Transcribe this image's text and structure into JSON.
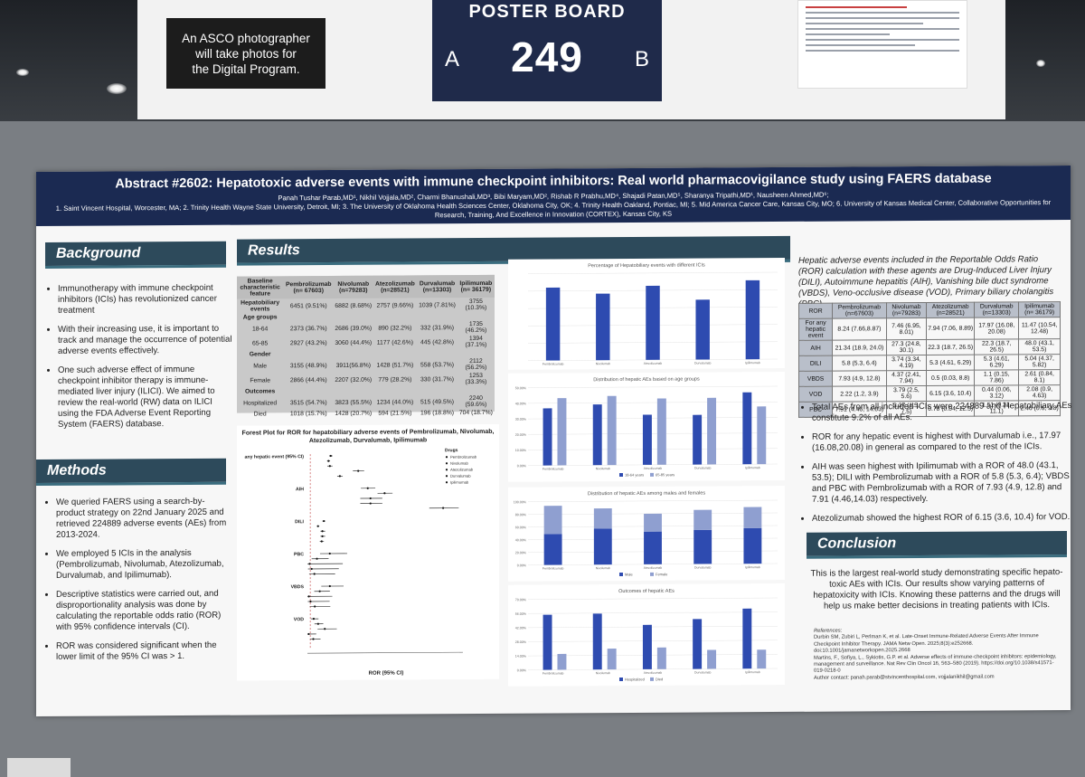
{
  "top_sign": {
    "asco_note": "An ASCO photographer\nwill take photos for\nthe Digital Program.",
    "poster_board_label": "POSTER BOARD",
    "side_a": "A",
    "board_number": "249",
    "side_b": "B"
  },
  "poster": {
    "title": "Abstract #2602: Hepatotoxic adverse events with immune checkpoint inhibitors: Real world pharmacovigilance study using FAERS database",
    "authors": "Panah Tushar Parab,MD¹, Nikhil Vojjala,MD², Charmi Bhanushali,MD³, Bibi Maryam,MD², Rishab R Prabhu,MD⁴, Shajadi Patan,MD⁵, Sharanya Tripathi,MD¹, Nausheen Ahmed,MD⁶;",
    "affiliations": "1. Saint Vincent Hospital, Worcester, MA; 2. Trinity Health Wayne State University, Detroit, MI; 3. The University of Oklahoma Health Sciences Center, Oklahoma City, OK; 4. Trinity Health Oakland, Pontiac, MI; 5. Mid America Cancer Care, Kansas City, MO; 6. University of Kansas Medical Center, Collaborative Opportunities for Research, Training, And Excellence in Innovation (CORTEX), Kansas City, KS",
    "background": {
      "heading": "Background",
      "bullets": [
        "Immunotherapy with immune checkpoint inhibitors (ICIs) has revolutionized cancer treatment",
        "With their increasing use, it is important to track and manage the occurrence of potential adverse events effectively.",
        "One such adverse effect of immune checkpoint inhibitor therapy is immune-mediated liver injury (ILICI). We aimed to review the real-world (RW) data on ILICI using the FDA Adverse Event Reporting System (FAERS) database."
      ]
    },
    "methods": {
      "heading": "Methods",
      "bullets": [
        "We queried FAERS using a search-by-product strategy on 22nd January 2025 and retrieved 224889 adverse events (AEs) from 2013-2024.",
        "We employed 5 ICIs in the analysis (Pembrolizumab, Nivolumab, Atezolizumab, Durvalumab, and Ipilimumab).",
        "Descriptive statistics were carried out, and disproportionality analysis was done by calculating the reportable odds ratio (ROR) with 95% confidence intervals (CI).",
        "ROR was considered significant when the lower limit of the 95% CI was > 1."
      ]
    },
    "results": {
      "heading": "Results",
      "baseline_table": {
        "headers": [
          "Baseline characteristic feature",
          "Pembrolizumab (n= 67603)",
          "Nivolumab (n=79283)",
          "Atezolizumab (n=28521)",
          "Durvalumab (n=13303)",
          "Ipilimumab (n= 36179)"
        ],
        "rows": [
          {
            "label": "Hepatobiliary events",
            "cells": [
              "6451 (9.51%)",
              "6882 (8.68%)",
              "2757 (9.66%)",
              "1039 (7.81%)",
              "3755 (10.3%)"
            ],
            "bold": true
          },
          {
            "label": "Age groups",
            "cells": [
              "",
              "",
              "",
              "",
              ""
            ],
            "bold": true
          },
          {
            "label": "18-64",
            "cells": [
              "2373 (36.7%)",
              "2686 (39.0%)",
              "890 (32.2%)",
              "332 (31.9%)",
              "1735 (46.2%)"
            ]
          },
          {
            "label": "65-85",
            "cells": [
              "2927 (43.2%)",
              "3060 (44.4%)",
              "1177 (42.6%)",
              "445 (42.8%)",
              "1394 (37.1%)"
            ]
          },
          {
            "label": "Gender",
            "cells": [
              "",
              "",
              "",
              "",
              ""
            ],
            "bold": true
          },
          {
            "label": "Male",
            "cells": [
              "3155 (48.9%)",
              "3911(56.8%)",
              "1428 (51.7%)",
              "558 (53.7%)",
              "2112 (56.2%)"
            ]
          },
          {
            "label": "Female",
            "cells": [
              "2866 (44.4%)",
              "2207 (32.0%)",
              "779 (28.2%)",
              "330 (31.7%)",
              "1253 (33.3%)"
            ]
          },
          {
            "label": "Outcomes",
            "cells": [
              "",
              "",
              "",
              "",
              ""
            ],
            "bold": true
          },
          {
            "label": "Hospitalized",
            "cells": [
              "3515 (54.7%)",
              "3823 (55.5%)",
              "1234 (44.0%)",
              "515 (49.5%)",
              "2240 (59.6%)"
            ]
          },
          {
            "label": "Died",
            "cells": [
              "1018 (15.7%)",
              "1428 (20.7%)",
              "594 (21.5%)",
              "196 (18.8%)",
              "704 (18.7%)"
            ]
          }
        ]
      },
      "forest_plot": {
        "title": "Forest Plot for ROR for hepatobiliary adverse events of Pembrolizumab, Nivolumab, Atezolizumab, Durvalumab, Ipilimumab",
        "legend_title": "Drugs",
        "xlabel": "ROR (95% CI)",
        "groups": [
          "any hepatic event (95% CI)",
          "AIH",
          "DILI",
          "PBC",
          "VBDS",
          "VOD"
        ]
      },
      "bar_charts": [
        {
          "title": "Percentage of Hepatobiliary events with different ICIs"
        },
        {
          "title": "Distribution of hepatic AEs based on age groups",
          "legend": [
            "18-64 years",
            "65-85 years"
          ]
        },
        {
          "title": "Distribution of hepatic AEs among males and females",
          "legend": [
            "Male",
            "Female"
          ]
        },
        {
          "title": "Outcomes of hepatic AEs",
          "legend": [
            "Hospitalized",
            "Died"
          ]
        }
      ]
    },
    "ror_section": {
      "intro": "Hepatic adverse events included in the Reportable Odds Ratio (ROR) calculation with these agents are Drug-Induced Liver Injury (DILI), Autoimmune hepatitis (AIH), Vanishing bile duct syndrome (VBDS), Veno-occlusive disease (VOD), Primary biliary cholangitis (PBC)",
      "table": {
        "headers": [
          "ROR",
          "Pembrolizumab (n=67603)",
          "Nivolumab (n=79283)",
          "Atezolizumab (n=28521)",
          "Durvalumab (n=13303)",
          "Ipilimumab (n= 36179)"
        ],
        "rows": [
          {
            "label": "For any hepatic event",
            "cells": [
              "8.24 (7.66,8.87)",
              "7.46 (6.95, 8.01)",
              "7.94 (7.06, 8.89)",
              "17.97 (16.08, 20.08)",
              "11.47 (10.54, 12.48)"
            ]
          },
          {
            "label": "AIH",
            "cells": [
              "21.34 (18.9, 24.0)",
              "27.3 (24.8, 30.1)",
              "22.3 (18.7, 26.5)",
              "22.3 (18.7, 26.5)",
              "48.0 (43.1, 53.5)"
            ]
          },
          {
            "label": "DILI",
            "cells": [
              "5.8 (5.3, 6.4)",
              "3.74 (3.34, 4.19)",
              "5.3 (4.61, 6.29)",
              "5.3 (4.61, 6.29)",
              "5.04 (4.37, 5.82)"
            ]
          },
          {
            "label": "VBDS",
            "cells": [
              "7.93 (4.9, 12.8)",
              "4.37 (2.41, 7.94)",
              "0.5 (0.03, 8.8)",
              "1.1 (0.15, 7.86)",
              "2.61 (0.84, 8.1)"
            ]
          },
          {
            "label": "VOD",
            "cells": [
              "2.22 (1.2, 3.9)",
              "3.79 (2.5, 5.6)",
              "6.15 (3.6, 10.4)",
              "0.44 (0.06, 3.12)",
              "2.08 (0.9, 4.63)"
            ]
          },
          {
            "label": "PBC",
            "cells": [
              "7.91 (4.46, 14.03)",
              "3.37 (1.5, 7.5)",
              "0.78 (0.04, 12.5)",
              "1.51 (0.21, 11.1)",
              "2.46 (0.6, 9.8)"
            ]
          }
        ]
      },
      "bullets": [
        "Total AEs from all included ICIs were 224889 and Hepatobiliary AEs constitute 9.2% of all AEs.",
        "ROR for any hepatic event is highest with Durvalumab i.e., 17.97 (16.08,20.08) in general as compared to the rest of the ICIs.",
        "AIH was seen highest with Ipilimumab with a ROR of 48.0 (43.1, 53.5); DILI with Pembrolizumab with a ROR of 5.8 (5.3, 6.4); VBDS and PBC with Pembrolizumab with a ROR of 7.93 (4.9, 12.8) and 7.91 (4.46,14.03) respectively.",
        "Atezolizumab showed the highest ROR of 6.15 (3.6, 10.4) for VOD."
      ]
    },
    "conclusion": {
      "heading": "Conclusion",
      "text": "This is the largest real-world study demonstrating specific hepato-toxic AEs with ICIs. Our results show varying patterns of hepatoxicity with ICIs. Knowing these patterns and the drugs will help us make better decisions in treating patients with ICIs."
    },
    "references": {
      "heading": "References:",
      "items": [
        "Durbin SM, Zubiri L, Perlman K, et al. Late-Onset Immune-Related Adverse Events After Immune Checkpoint Inhibitor Therapy. JAMA Netw Open. 2025;8(3):e252668. doi:10.1001/jamanetworkopen.2025.2668",
        "Martins, F., Sofiya, L., Sykiotis, G.P. et al. Adverse effects of immune-checkpoint inhibitors: epidemiology, management and surveillance. Nat Rev Clin Oncol 16, 563–580 (2019). https://doi.org/10.1038/s41571-019-0218-0"
      ],
      "contact": "Author contact: panah.parab@stvincenthospital.com, vojjalanikhil@gmail.com"
    }
  },
  "chart_data": [
    {
      "type": "bar",
      "title": "Percentage of Hepatobiliary events with different ICIs",
      "categories": [
        "Pembrolizumab",
        "Nivolumab",
        "Atezolizumab",
        "Durvalumab",
        "Ipilimumab"
      ],
      "values": [
        9.51,
        8.68,
        9.66,
        7.81,
        10.3
      ]
    },
    {
      "type": "bar",
      "title": "Distribution of hepatic AEs based on age groups",
      "categories": [
        "Pembrolizumab",
        "Nivolumab",
        "Atezolizumab",
        "Durvalumab",
        "Ipilimumab"
      ],
      "series": [
        {
          "name": "18-64 years",
          "values": [
            36.7,
            39.0,
            32.2,
            31.9,
            46.2
          ]
        },
        {
          "name": "65-85 years",
          "values": [
            43.2,
            44.4,
            42.6,
            42.8,
            37.1
          ]
        }
      ],
      "ylim": [
        0,
        50
      ]
    },
    {
      "type": "bar",
      "title": "Distribution of hepatic AEs among males and females",
      "categories": [
        "Pembrolizumab",
        "Nivolumab",
        "Atezolizumab",
        "Durvalumab",
        "Ipilimumab"
      ],
      "series": [
        {
          "name": "Male",
          "values": [
            48.9,
            56.8,
            51.7,
            53.7,
            56.2
          ]
        },
        {
          "name": "Female",
          "values": [
            44.4,
            32.0,
            28.2,
            31.7,
            33.3
          ]
        }
      ],
      "ylim": [
        0,
        100
      ]
    },
    {
      "type": "bar",
      "title": "Outcomes of hepatic AEs",
      "categories": [
        "Pembrolizumab",
        "Nivolumab",
        "Atezolizumab",
        "Durvalumab",
        "Ipilimumab"
      ],
      "series": [
        {
          "name": "Hospitalized",
          "values": [
            54.7,
            55.5,
            44.0,
            49.5,
            59.6
          ]
        },
        {
          "name": "Died",
          "values": [
            15.7,
            20.7,
            21.5,
            18.8,
            18.7
          ]
        }
      ],
      "ylim": [
        0,
        70
      ]
    },
    {
      "type": "scatter",
      "title": "Forest Plot for ROR for hepatobiliary adverse events of Pembrolizumab, Nivolumab, Atezolizumab, Durvalumab, Ipilimumab",
      "xlabel": "ROR (95% CI)",
      "legend_title": "Drugs",
      "series_names": [
        "Pembrolizumab",
        "Nivolumab",
        "Atezolizumab",
        "Durvalumab",
        "Ipilimumab"
      ],
      "groups": [
        {
          "name": "any hepatic event (95% CI)",
          "est": [
            8.24,
            7.46,
            7.94,
            17.97,
            11.47
          ],
          "lo": [
            7.66,
            6.95,
            7.06,
            16.08,
            10.54
          ],
          "hi": [
            8.87,
            8.01,
            8.89,
            20.08,
            12.48
          ]
        },
        {
          "name": "AIH",
          "est": [
            21.34,
            27.3,
            22.3,
            22.3,
            48.0
          ],
          "lo": [
            18.9,
            24.8,
            18.7,
            18.7,
            43.1
          ],
          "hi": [
            24.0,
            30.1,
            26.5,
            26.5,
            53.5
          ]
        },
        {
          "name": "DILI",
          "est": [
            5.8,
            3.74,
            5.3,
            5.3,
            5.04
          ],
          "lo": [
            5.3,
            3.34,
            4.61,
            4.61,
            4.37
          ],
          "hi": [
            6.4,
            4.19,
            6.29,
            6.29,
            5.82
          ]
        },
        {
          "name": "PBC",
          "est": [
            7.91,
            3.37,
            0.78,
            1.51,
            2.46
          ],
          "lo": [
            4.46,
            1.5,
            0.04,
            0.21,
            0.6
          ],
          "hi": [
            14.03,
            7.5,
            12.5,
            11.1,
            9.8
          ]
        },
        {
          "name": "VBDS",
          "est": [
            7.93,
            4.37,
            0.5,
            1.1,
            2.61
          ],
          "lo": [
            4.9,
            2.41,
            0.03,
            0.15,
            0.84
          ],
          "hi": [
            12.8,
            7.94,
            8.8,
            7.86,
            8.1
          ]
        },
        {
          "name": "VOD",
          "est": [
            2.22,
            3.79,
            6.15,
            0.44,
            2.08
          ],
          "lo": [
            1.2,
            2.5,
            3.6,
            0.06,
            0.9
          ],
          "hi": [
            3.9,
            5.6,
            10.4,
            3.12,
            4.63
          ]
        }
      ]
    }
  ],
  "colors": {
    "header_navy": "#1b2a52",
    "section_teal": "#2d4a5b",
    "bar_dark": "#2e4bb0",
    "bar_light": "#8f9fd0"
  }
}
